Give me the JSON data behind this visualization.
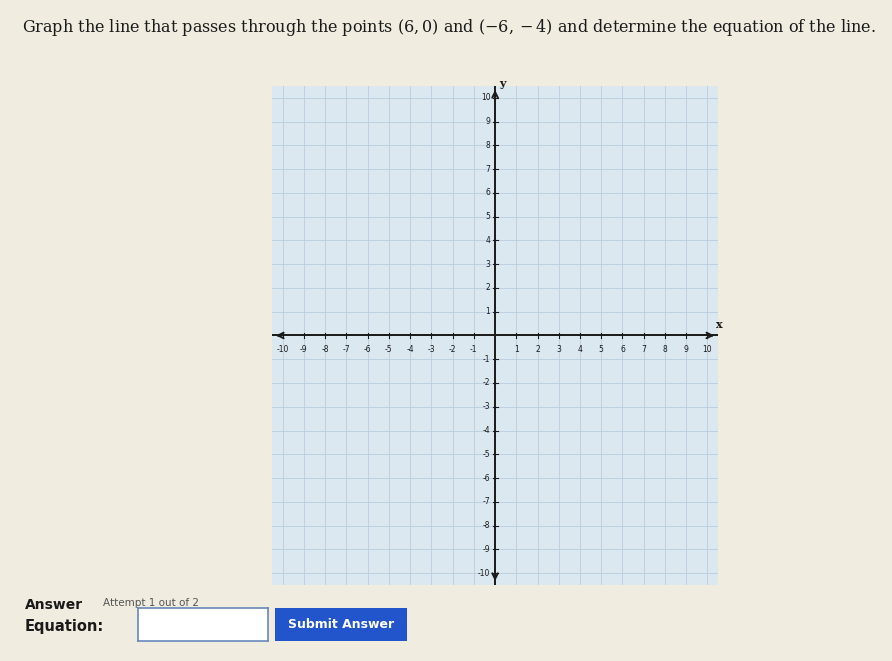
{
  "title_line1": "Graph the line that passes through the points $(6, 0)$ and $(-6, -4)$ and determine the equation of the line.",
  "point1": [
    6,
    0
  ],
  "point2": [
    -6,
    -4
  ],
  "xlim": [
    -10.5,
    10.5
  ],
  "ylim": [
    -10.5,
    10.5
  ],
  "x_ticks": [
    -10,
    -9,
    -8,
    -7,
    -6,
    -5,
    -4,
    -3,
    -2,
    -1,
    1,
    2,
    3,
    4,
    5,
    6,
    7,
    8,
    9,
    10
  ],
  "y_ticks": [
    -10,
    -9,
    -8,
    -7,
    -6,
    -5,
    -4,
    -3,
    -2,
    -1,
    1,
    2,
    3,
    4,
    5,
    6,
    7,
    8,
    9,
    10
  ],
  "grid_color": "#b8cde0",
  "axis_color": "#1a1a1a",
  "plot_bg_color": "#dce8f0",
  "outer_bg_color": "#f0ece0",
  "figure_bg": "#f0ece0",
  "answer_label": "Answer",
  "attempt_label": "Attempt 1 out of 2",
  "equation_label": "Equation:",
  "submit_button_text": "Submit Answer",
  "submit_button_color": "#2255cc",
  "input_box_border_color": "#6688bb"
}
